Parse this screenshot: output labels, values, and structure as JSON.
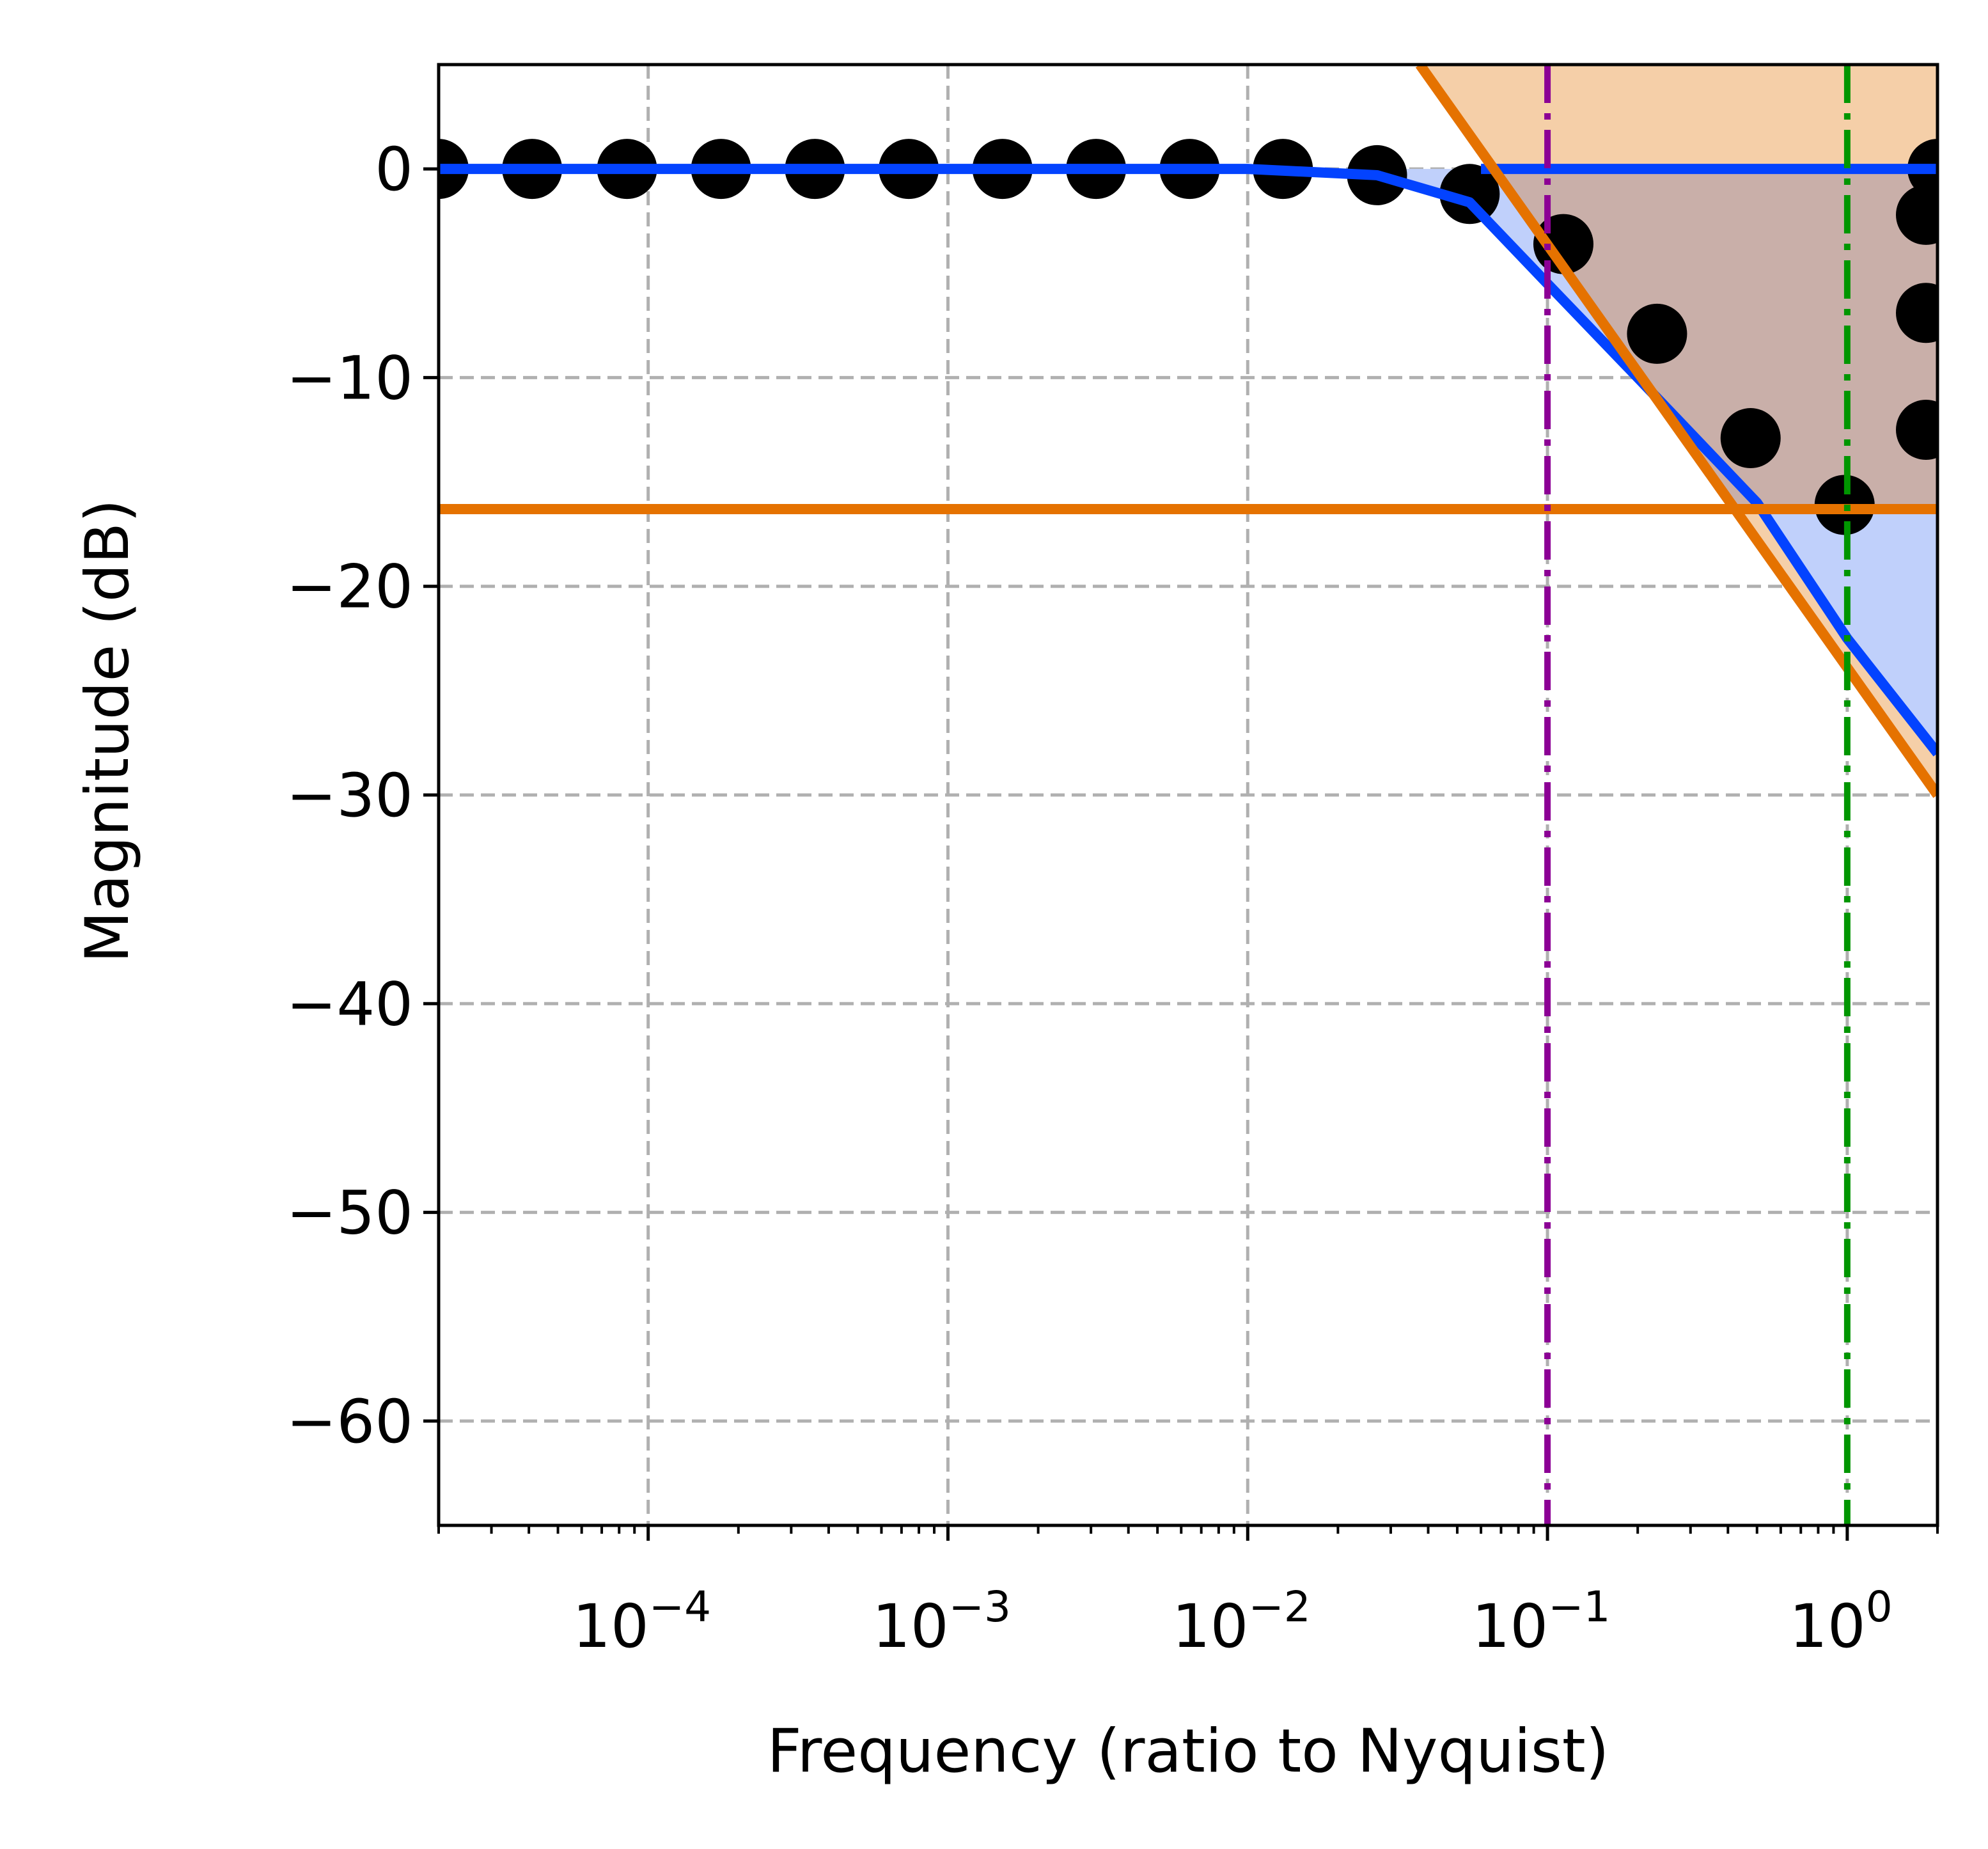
{
  "chart_data": {
    "type": "line",
    "title": "",
    "xlabel": "Frequency (ratio to Nyquist)",
    "ylabel": "Magnitude (dB)",
    "x_scale": "log",
    "xlim": [
      2e-05,
      2.0
    ],
    "ylim": [
      -65,
      5
    ],
    "grid": true,
    "x_ticks": [
      {
        "value": 0.0001,
        "base": "10",
        "exp": "−4"
      },
      {
        "value": 0.001,
        "base": "10",
        "exp": "−3"
      },
      {
        "value": 0.01,
        "base": "10",
        "exp": "−2"
      },
      {
        "value": 0.1,
        "base": "10",
        "exp": "−1"
      },
      {
        "value": 1.0,
        "base": "10",
        "exp": "0"
      }
    ],
    "y_ticks": [
      {
        "value": 0,
        "label": "0"
      },
      {
        "value": -10,
        "label": "−10"
      },
      {
        "value": -20,
        "label": "−20"
      },
      {
        "value": -30,
        "label": "−30"
      },
      {
        "value": -40,
        "label": "−40"
      },
      {
        "value": -50,
        "label": "−50"
      },
      {
        "value": -60,
        "label": "−60"
      }
    ],
    "colors": {
      "response": "#0343ff",
      "limits": "#e57200",
      "fill_orange": "#f5cfa8",
      "fill_blue": "#c0d0fb",
      "fill_overlap": "#c9afa9",
      "markers": "#000000",
      "cutoff_line": "#8c0095",
      "nyquist_line": "#009600",
      "grid": "#b0b0b0"
    },
    "points_x": [
      2e-05,
      4.1e-05,
      8.5e-05,
      0.000175,
      0.00036,
      0.00074,
      0.00152,
      0.00312,
      0.0064,
      0.0131,
      0.027,
      0.055,
      0.113,
      0.232,
      0.476,
      0.98,
      2.0
    ],
    "points_y": [
      0,
      0,
      0,
      0,
      0,
      0,
      0,
      0,
      0,
      0,
      -0.3,
      -1.2,
      -3.6,
      -7.9,
      -12.9,
      -16.1,
      0
    ],
    "points_right_edge_y": [
      -2.2,
      -6.9,
      -12.5
    ],
    "response_curve": {
      "x": [
        2e-05,
        0.0001,
        0.001,
        0.01,
        0.027,
        0.055,
        0.1,
        0.2,
        0.5,
        1.0,
        2.0
      ],
      "y": [
        0,
        0,
        0,
        0,
        -0.3,
        -1.6,
        -5.5,
        -10.0,
        -16.0,
        -22.5,
        -28.0
      ]
    },
    "upper_limit_y": 0,
    "upper_limit_x_start": 0.06,
    "lower_limit_y": -16.3,
    "slope_limit": {
      "x": [
        0.0375,
        2.0
      ],
      "y": [
        5,
        -30.0
      ]
    },
    "cutoff_x": 0.1,
    "nyquist_x": 1.0
  }
}
